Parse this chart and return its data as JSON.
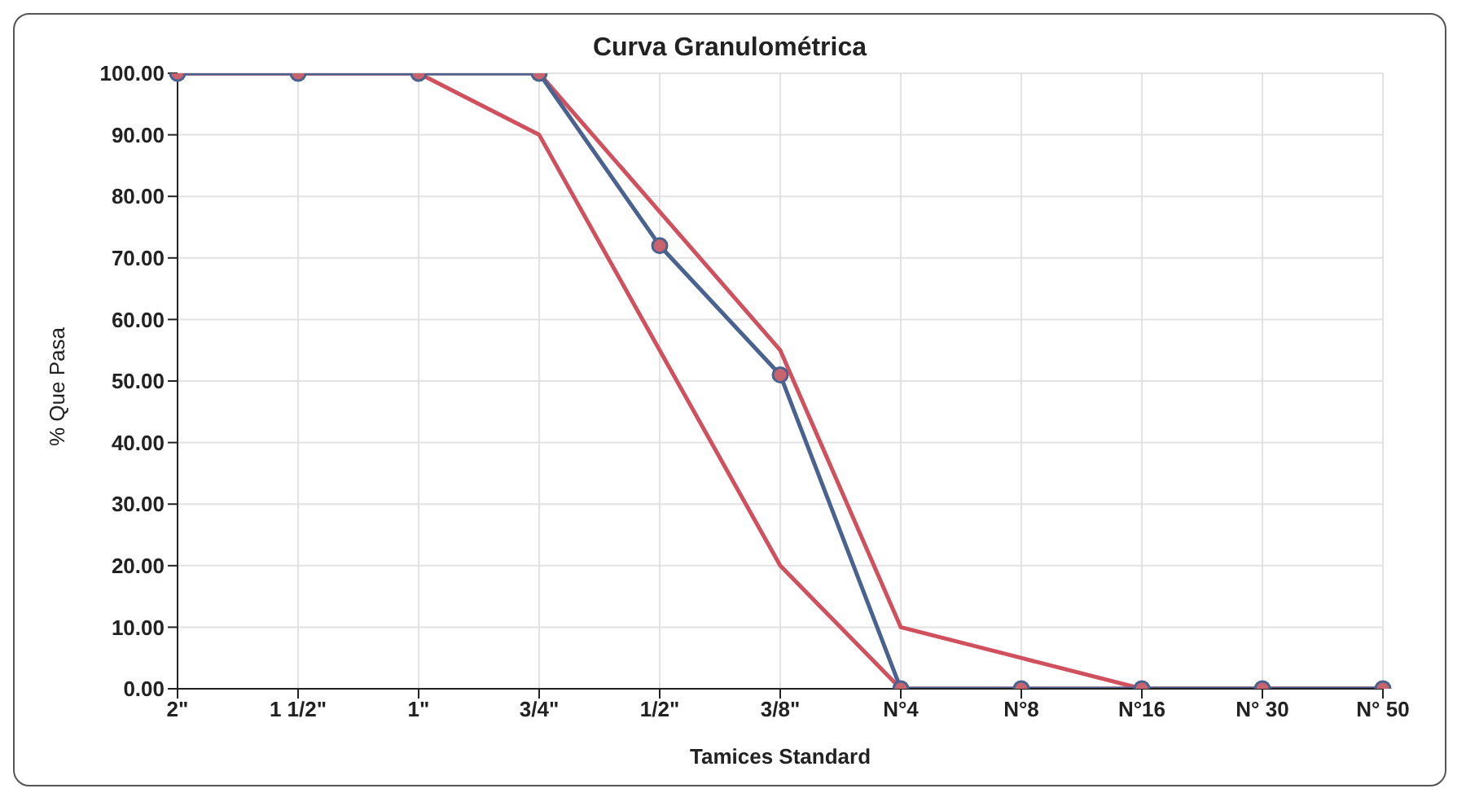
{
  "chart_data": {
    "type": "line",
    "title": "Curva Granulométrica",
    "xlabel": "Tamices Standard",
    "ylabel": "% Que Pasa",
    "categories": [
      "2\"",
      "1 1/2\"",
      "1\"",
      "3/4\"",
      "1/2\"",
      "3/8\"",
      "N°4",
      "N°8",
      "N°16",
      "N° 30",
      "N° 50"
    ],
    "series": [
      {
        "color": "#d0505e",
        "marker": "none",
        "values": [
          100,
          100,
          100,
          100,
          77.5,
          55,
          10,
          5,
          0,
          0,
          0
        ]
      },
      {
        "color": "#d0505e",
        "marker": "none",
        "values": [
          100,
          100,
          100,
          90,
          55,
          20,
          0,
          0,
          0,
          0,
          0
        ]
      },
      {
        "color": "#4a6290",
        "marker": "circle",
        "values": [
          100,
          100,
          100,
          100,
          72,
          51,
          0,
          0,
          0,
          0,
          0
        ]
      }
    ],
    "ylim": [
      0,
      100
    ],
    "yticks": [
      {
        "value": 0,
        "label": "0.00"
      },
      {
        "value": 10,
        "label": "10.00"
      },
      {
        "value": 20,
        "label": "20.00"
      },
      {
        "value": 30,
        "label": "30.00"
      },
      {
        "value": 40,
        "label": "40.00"
      },
      {
        "value": 50,
        "label": "50.00"
      },
      {
        "value": 60,
        "label": "60.00"
      },
      {
        "value": 70,
        "label": "70.00"
      },
      {
        "value": 80,
        "label": "80.00"
      },
      {
        "value": 90,
        "label": "90.00"
      },
      {
        "value": 100,
        "label": "100.00"
      }
    ],
    "grid": true,
    "legend": false,
    "line_style": "solid"
  }
}
